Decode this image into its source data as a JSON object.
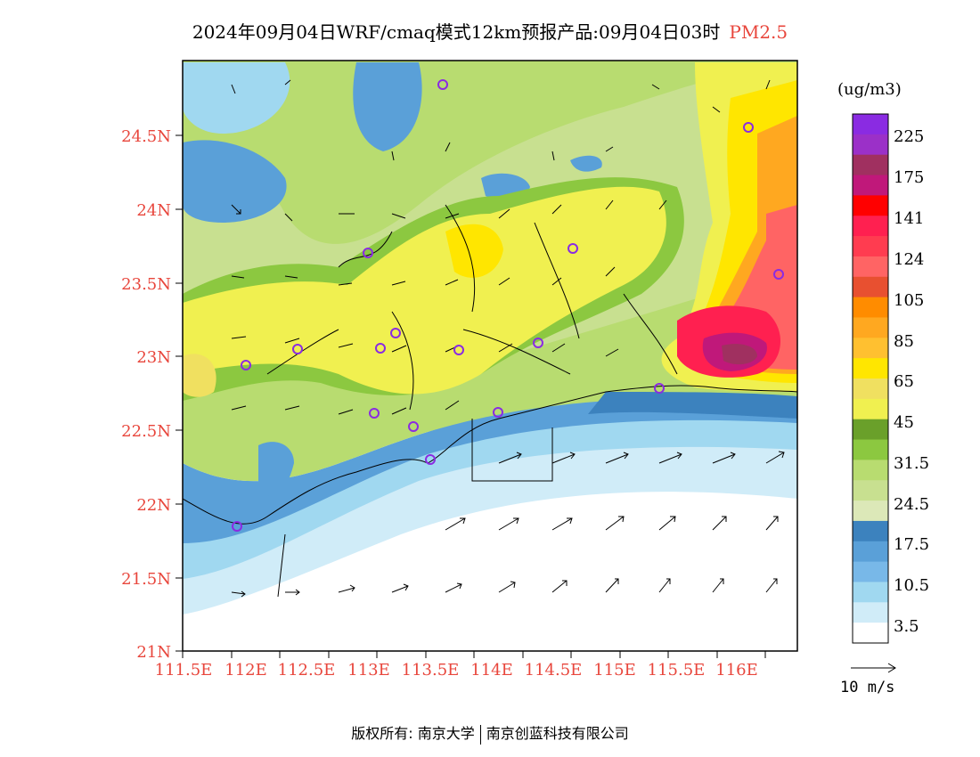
{
  "title": {
    "main": "2024年09月04日WRF/cmaq模式12km预报产品:09月04日03时",
    "pollutant": "PM2.5"
  },
  "axes": {
    "lat_ticks": [
      "21N",
      "21.5N",
      "22N",
      "22.5N",
      "23N",
      "23.5N",
      "24N",
      "24.5N"
    ],
    "lon_ticks": [
      "111.5E",
      "112E",
      "112.5E",
      "113E",
      "113.5E",
      "114E",
      "114.5E",
      "115E",
      "115.5E",
      "116E"
    ]
  },
  "colorbar": {
    "unit": "(ug/m3)",
    "labels": [
      "225",
      "175",
      "141",
      "124",
      "105",
      "85",
      "65",
      "45",
      "31.5",
      "24.5",
      "17.5",
      "10.5",
      "3.5"
    ],
    "colors": [
      "#8a2be2",
      "#9b30c8",
      "#a03060",
      "#c0187a",
      "#ff0000",
      "#ff2050",
      "#ff3c50",
      "#ff6464",
      "#e85030",
      "#ff8c00",
      "#ffa820",
      "#ffc030",
      "#ffe600",
      "#f0e060",
      "#f0f050",
      "#6aa02a",
      "#8cc840",
      "#b8dc70",
      "#c8e090",
      "#dce8b8",
      "#3c82be",
      "#5aa0d8",
      "#78b8e8",
      "#a0d8f0",
      "#d0ecf8",
      "#ffffff"
    ]
  },
  "wind": {
    "reference_label": "10 m/s"
  },
  "footer": {
    "copyright": "版权所有: 南京大学",
    "company": "南京创蓝科技有限公司"
  },
  "stations": 18
}
